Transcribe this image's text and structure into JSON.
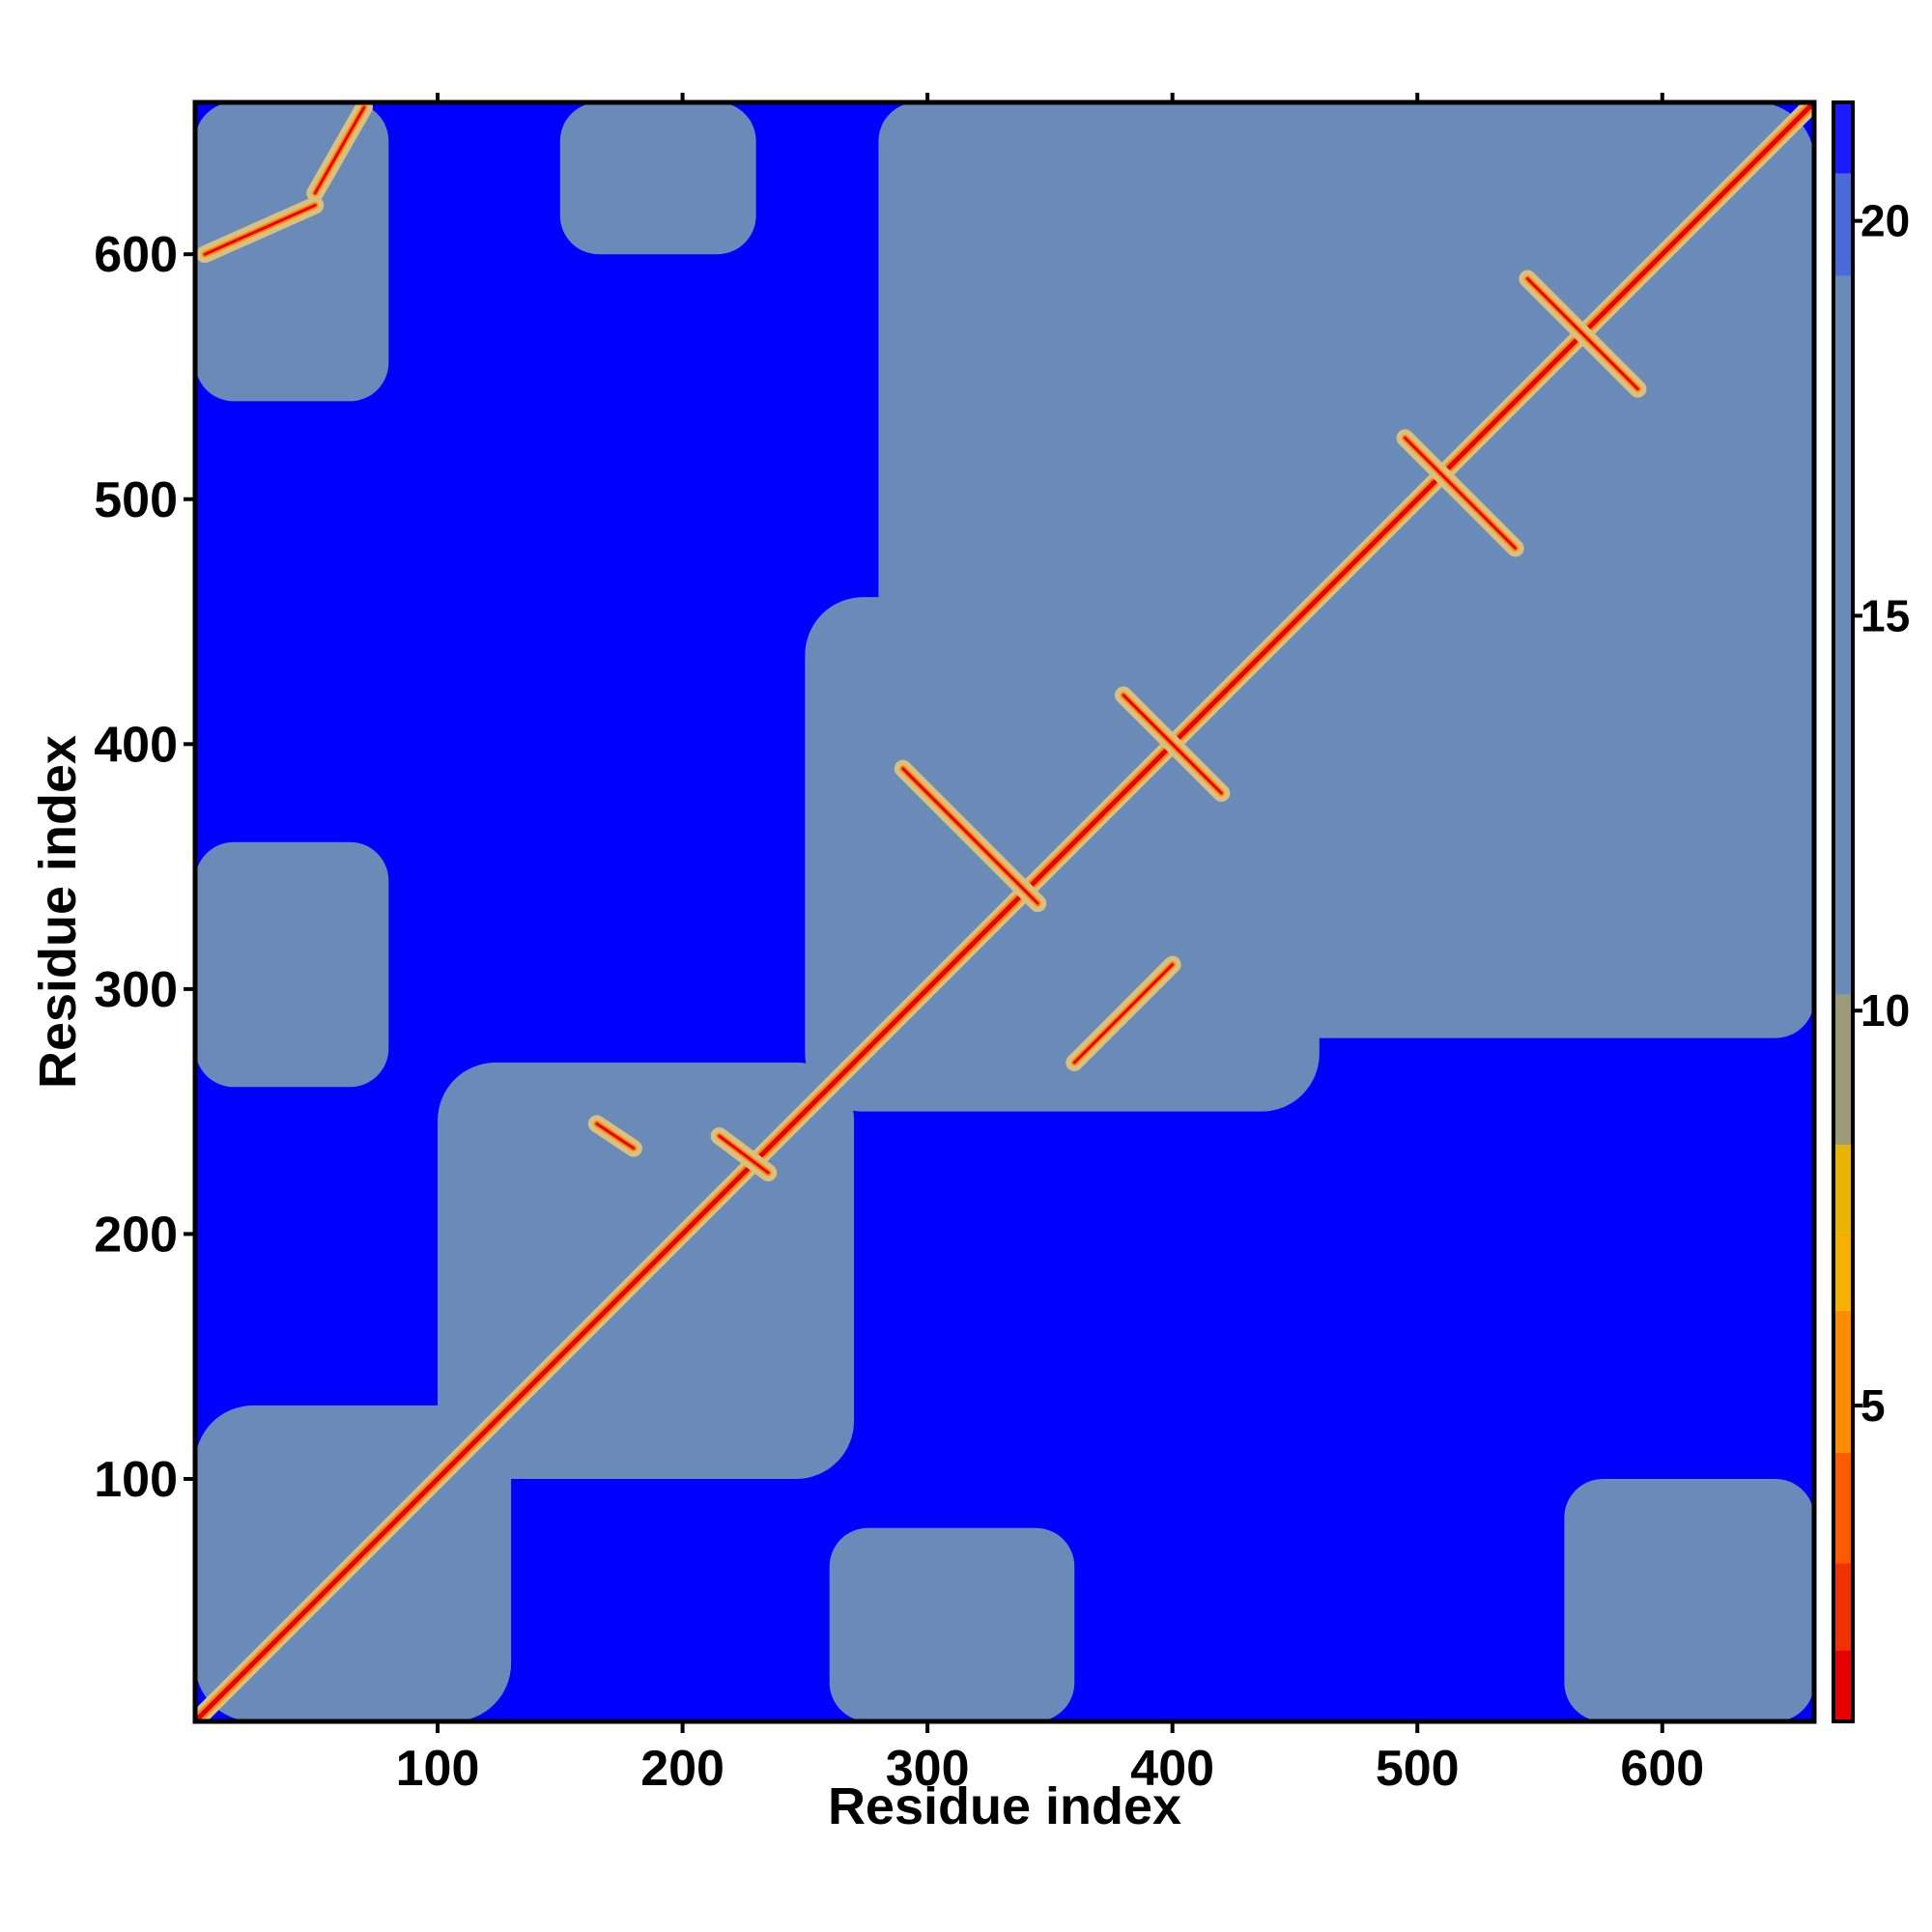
{
  "chart_data": {
    "type": "heatmap",
    "title": "",
    "xlabel": "Residue index",
    "ylabel": "Residue index",
    "xlim": [
      1,
      662
    ],
    "ylim": [
      1,
      662
    ],
    "x_ticks": [
      100,
      200,
      300,
      400,
      500,
      600
    ],
    "y_ticks": [
      100,
      200,
      300,
      400,
      500,
      600
    ],
    "colorbar": {
      "ticks": [
        5,
        10,
        15,
        20
      ],
      "range": [
        1,
        21.5
      ],
      "bands": [
        {
          "from": 1.0,
          "to": 1.9,
          "color": "#e60000"
        },
        {
          "from": 1.9,
          "to": 3.0,
          "color": "#f23000"
        },
        {
          "from": 3.0,
          "to": 4.4,
          "color": "#ff5a00"
        },
        {
          "from": 4.4,
          "to": 6.2,
          "color": "#ff8c00"
        },
        {
          "from": 6.2,
          "to": 7.2,
          "color": "#f5b000"
        },
        {
          "from": 7.2,
          "to": 8.3,
          "color": "#e8b400"
        },
        {
          "from": 8.3,
          "to": 10.2,
          "color": "#9a9a78"
        },
        {
          "from": 10.2,
          "to": 19.3,
          "color": "#6a8ab8"
        },
        {
          "from": 19.3,
          "to": 20.6,
          "color": "#4a6ad8"
        },
        {
          "from": 20.6,
          "to": 21.5,
          "color": "#1a1aff"
        }
      ]
    },
    "colormap": {
      "background": "#0000ff",
      "mid": "#6a8ab8",
      "near": "#d8c080",
      "close": "#ff8c00",
      "contact": "#e60000"
    },
    "domains": [
      [
        1,
        130
      ],
      [
        100,
        270
      ],
      [
        250,
        460
      ],
      [
        380,
        662
      ],
      [
        560,
        662
      ]
    ],
    "interdomain_contact_regions": [
      {
        "x": [
          1,
          80
        ],
        "y": [
          540,
          662
        ]
      },
      {
        "x": [
          560,
          662
        ],
        "y": [
          1,
          100
        ]
      },
      {
        "x": [
          150,
          230
        ],
        "y": [
          600,
          662
        ]
      },
      {
        "x": [
          280,
          470
        ],
        "y": [
          440,
          662
        ]
      },
      {
        "x": [
          440,
          662
        ],
        "y": [
          280,
          470
        ]
      },
      {
        "x": [
          1,
          80
        ],
        "y": [
          260,
          360
        ]
      },
      {
        "x": [
          260,
          360
        ],
        "y": [
          1,
          80
        ]
      }
    ],
    "contact_features": [
      {
        "type": "diagonal",
        "from": [
          1,
          1
        ],
        "to": [
          662,
          662
        ]
      },
      {
        "type": "antiparallel",
        "from": [
          290,
          390
        ],
        "to": [
          345,
          335
        ]
      },
      {
        "type": "antiparallel",
        "from": [
          360,
          270
        ],
        "to": [
          400,
          310
        ]
      },
      {
        "type": "antiparallel",
        "from": [
          380,
          420
        ],
        "to": [
          420,
          380
        ]
      },
      {
        "type": "antiparallel",
        "from": [
          495,
          525
        ],
        "to": [
          540,
          480
        ]
      },
      {
        "type": "antiparallel",
        "from": [
          545,
          590
        ],
        "to": [
          590,
          545
        ]
      },
      {
        "type": "antiparallel",
        "from": [
          165,
          245
        ],
        "to": [
          180,
          235
        ]
      },
      {
        "type": "antiparallel",
        "from": [
          215,
          240
        ],
        "to": [
          235,
          225
        ]
      },
      {
        "type": "parallel",
        "from": [
          5,
          600
        ],
        "to": [
          50,
          620
        ]
      },
      {
        "type": "parallel",
        "from": [
          50,
          625
        ],
        "to": [
          70,
          660
        ]
      }
    ]
  }
}
